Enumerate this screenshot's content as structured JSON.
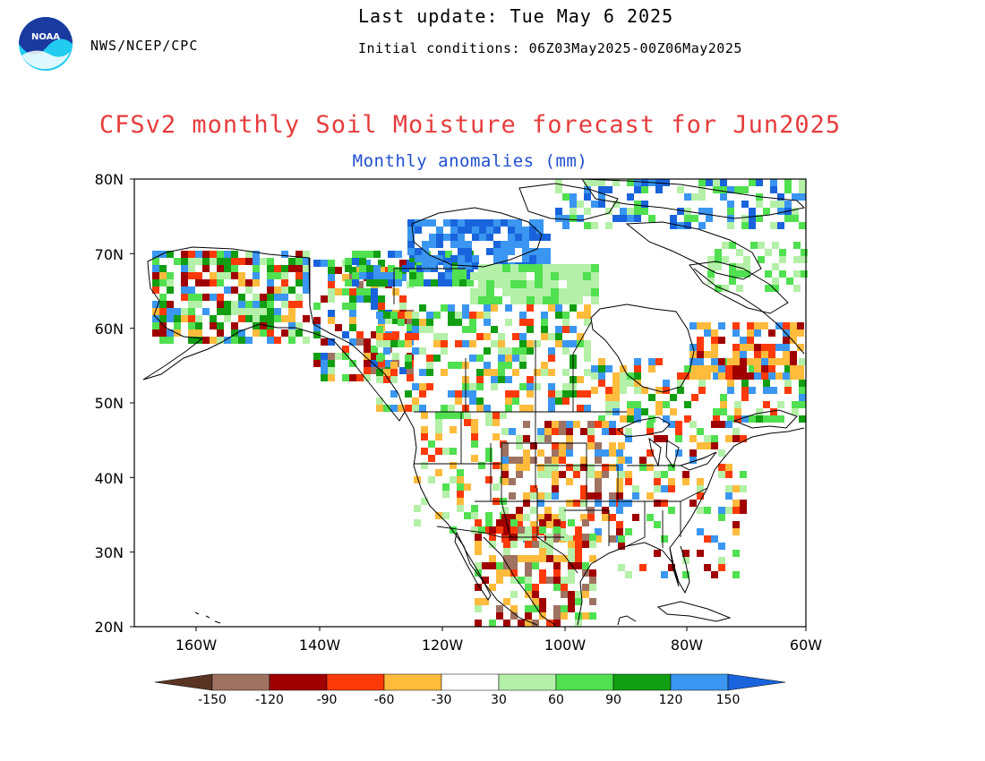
{
  "header": {
    "agency": "NWS/NCEP/CPC",
    "last_update": "Last update: Tue May 6 2025",
    "initial_conditions": "Initial conditions: 06Z03May2025-00Z06May2025",
    "logo_text": "NOAA"
  },
  "title": "CFSv2 monthly Soil Moisture forecast for Jun2025",
  "subtitle": "Monthly anomalies (mm)",
  "axes": {
    "lat_labels": [
      "80N",
      "70N",
      "60N",
      "50N",
      "40N",
      "30N",
      "20N"
    ],
    "lon_labels": [
      "160W",
      "140W",
      "120W",
      "100W",
      "80W",
      "60W"
    ]
  },
  "colorbar": {
    "labels": [
      "-150",
      "-120",
      "-90",
      "-60",
      "-30",
      "30",
      "60",
      "90",
      "120",
      "150"
    ],
    "colors": [
      "#5a3423",
      "#a07262",
      "#a00000",
      "#ff3a0a",
      "#ffbb3c",
      "#ffffff",
      "#b4f0a8",
      "#50e050",
      "#129e12",
      "#3a96f0",
      "#1964dc"
    ]
  },
  "legend_colors": {
    "dark_brown": "#5a3423",
    "brown": "#a07262",
    "dark_red": "#a00000",
    "red": "#ff3a0a",
    "orange": "#ffbb3c",
    "light_green": "#b4f0a8",
    "green": "#50e050",
    "dark_green": "#129e12",
    "light_blue": "#3a96f0",
    "blue": "#1964dc"
  }
}
